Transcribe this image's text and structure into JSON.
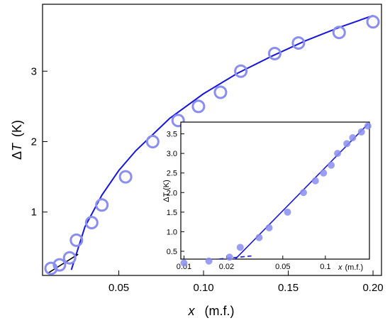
{
  "chart_data": [
    {
      "type": "scatter",
      "title": "",
      "xlabel_var": "x",
      "xlabel_unit": "(m.f.)",
      "ylabel_delta": "Δ",
      "ylabel_var": "T",
      "ylabel_unit": "(K)",
      "xlim": [
        0.005,
        0.205
      ],
      "ylim": [
        0.1,
        3.95
      ],
      "xticks": [
        0.05,
        0.1,
        0.15,
        0.2
      ],
      "xtick_labels": [
        "0.05",
        "0.10",
        "0.15",
        "0.20"
      ],
      "yticks": [
        1,
        2,
        3
      ],
      "ytick_labels": [
        "1",
        "2",
        "3"
      ],
      "grid": false,
      "legend": "none",
      "colors": {
        "markers": "#8a8ef0",
        "fit": "#1515e0",
        "initial_fit": "#000000"
      },
      "series": [
        {
          "marker": "open-circle",
          "x": [
            0.01,
            0.015,
            0.021,
            0.025,
            0.034,
            0.04,
            0.054,
            0.07,
            0.085,
            0.097,
            0.11,
            0.122,
            0.142,
            0.156,
            0.18,
            0.2
          ],
          "y": [
            0.2,
            0.25,
            0.35,
            0.6,
            0.85,
            1.1,
            1.5,
            2.0,
            2.3,
            2.5,
            2.7,
            3.0,
            3.25,
            3.4,
            3.55,
            3.7
          ]
        },
        {
          "style": "solid",
          "x": [
            0.022,
            0.03,
            0.04,
            0.05,
            0.06,
            0.08,
            0.1,
            0.12,
            0.14,
            0.16,
            0.18,
            0.2
          ],
          "y": [
            0.18,
            0.79,
            1.24,
            1.59,
            1.87,
            2.33,
            2.68,
            2.97,
            3.21,
            3.43,
            3.62,
            3.79
          ]
        },
        {
          "style": "solid",
          "x": [
            0.008,
            0.026
          ],
          "y": [
            0.13,
            0.4
          ]
        }
      ]
    },
    {
      "type": "scatter",
      "scale_x": "log",
      "xlabel_var": "x",
      "xlabel_unit": "(m.f.)",
      "ylabel": "ΔT (K)",
      "xlim": [
        0.0095,
        0.205
      ],
      "ylim": [
        0.3,
        3.8
      ],
      "xticks": [
        0.01,
        0.02,
        0.05,
        0.1
      ],
      "xtick_labels": [
        "0.01",
        "0.02",
        "0.05",
        "0.1"
      ],
      "yticks": [
        0.5,
        1.0,
        1.5,
        2.0,
        2.5,
        3.0,
        3.5
      ],
      "ytick_labels": [
        "0.5",
        "1.0",
        "1.5",
        "2.0",
        "2.5",
        "3.0",
        "3.5"
      ],
      "series": [
        {
          "marker": "filled-circle",
          "x": [
            0.01,
            0.015,
            0.021,
            0.025,
            0.034,
            0.04,
            0.054,
            0.07,
            0.085,
            0.097,
            0.11,
            0.122,
            0.142,
            0.156,
            0.18,
            0.2
          ],
          "y": [
            0.2,
            0.25,
            0.35,
            0.6,
            0.85,
            1.1,
            1.5,
            2.0,
            2.3,
            2.5,
            2.7,
            3.0,
            3.25,
            3.4,
            3.55,
            3.7
          ]
        },
        {
          "style": "solid",
          "x": [
            0.021,
            0.2
          ],
          "y": [
            0.15,
            3.75
          ]
        },
        {
          "style": "dashed",
          "x": [
            0.01,
            0.03
          ],
          "y": [
            0.22,
            0.38
          ]
        }
      ]
    }
  ]
}
